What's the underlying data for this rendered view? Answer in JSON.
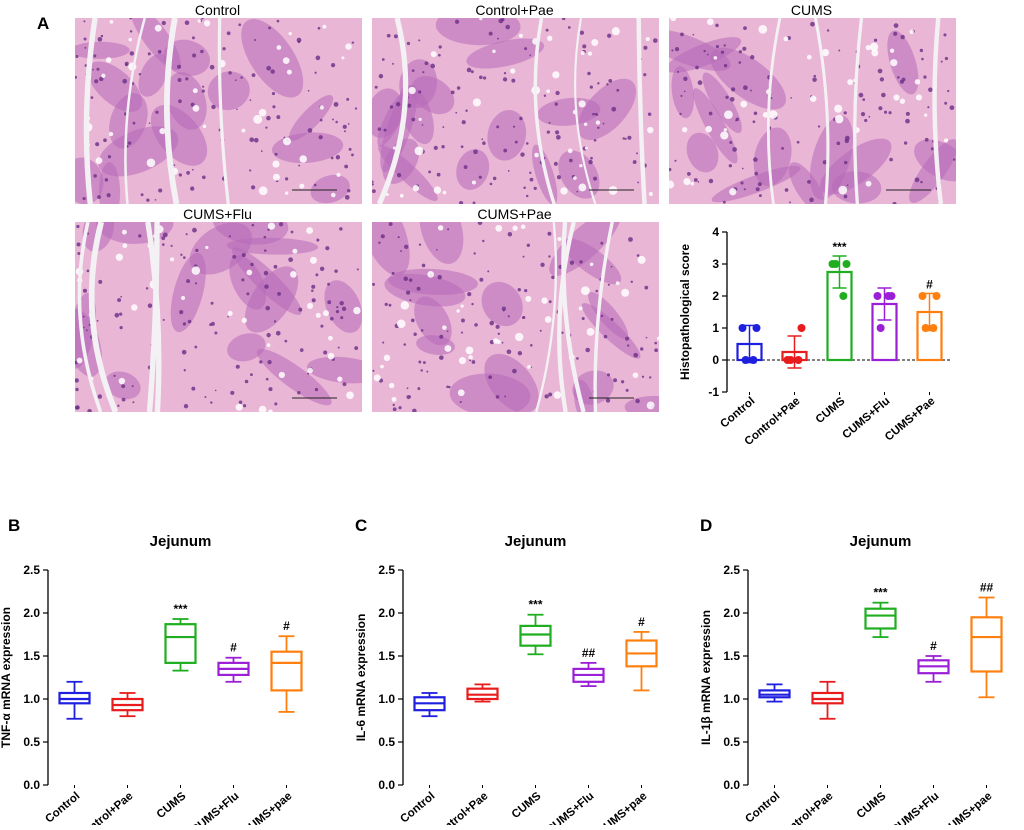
{
  "panel_letters": {
    "a": "A",
    "b": "B",
    "c": "C",
    "d": "D"
  },
  "micrographs": [
    {
      "title": "Control"
    },
    {
      "title": "Control+Pae"
    },
    {
      "title": "CUMS"
    },
    {
      "title": "CUMS+Flu"
    },
    {
      "title": "CUMS+Pae"
    }
  ],
  "colors": {
    "Control": "#1f1fe0",
    "Control+Pae": "#e81c1c",
    "CUMS": "#1fae1f",
    "CUMS+Flu": "#9b1fd6",
    "CUMS+Pae": "#ff7f0e",
    "tissue_bg": "#e9b6d6",
    "tissue_dark": "#6a2e86",
    "tissue_mid": "#b76ab8",
    "lumen": "#f4f1f4"
  },
  "chart_data": [
    {
      "id": "histo",
      "type": "bar",
      "title": "",
      "ylabel": "Histopathological score",
      "xlabel": "",
      "ylim": [
        -1,
        4
      ],
      "yticks": [
        "-1",
        "0",
        "1",
        "2",
        "3",
        "4"
      ],
      "categories": [
        "Control",
        "Control+Pae",
        "CUMS",
        "CUMS+Flu",
        "CUMS+Pae"
      ],
      "values": [
        0.5,
        0.25,
        2.75,
        1.75,
        1.5
      ],
      "sd": [
        0.58,
        0.5,
        0.5,
        0.5,
        0.58
      ],
      "points": [
        [
          1,
          1,
          0,
          0
        ],
        [
          0,
          1,
          0,
          0
        ],
        [
          3,
          3,
          3,
          2
        ],
        [
          2,
          2,
          1,
          2
        ],
        [
          2,
          2,
          1,
          1
        ]
      ],
      "annotations": [
        "",
        "",
        "***",
        "",
        "#"
      ],
      "zero_line": "dashed"
    },
    {
      "id": "tnf",
      "type": "box",
      "title": "Jejunum",
      "ylabel": "TNF-α mRNA expression",
      "xlabel": "",
      "ylim": [
        0,
        2.5
      ],
      "yticks": [
        "0.0",
        "0.5",
        "1.0",
        "1.5",
        "2.0",
        "2.5"
      ],
      "categories": [
        "Control",
        "Control+Pae",
        "CUMS",
        "CUMS+Flu",
        "CUMS+pae"
      ],
      "boxes": [
        {
          "min": 0.77,
          "q1": 0.95,
          "median": 1.0,
          "q3": 1.07,
          "max": 1.2
        },
        {
          "min": 0.8,
          "q1": 0.87,
          "median": 0.93,
          "q3": 1.0,
          "max": 1.07
        },
        {
          "min": 1.33,
          "q1": 1.42,
          "median": 1.72,
          "q3": 1.87,
          "max": 1.93
        },
        {
          "min": 1.2,
          "q1": 1.28,
          "median": 1.35,
          "q3": 1.42,
          "max": 1.48
        },
        {
          "min": 0.85,
          "q1": 1.1,
          "median": 1.42,
          "q3": 1.55,
          "max": 1.73
        }
      ],
      "annotations": [
        "",
        "",
        "***",
        "#",
        "#"
      ]
    },
    {
      "id": "il6",
      "type": "box",
      "title": "Jejunum",
      "ylabel": "IL-6 mRNA expression",
      "xlabel": "",
      "ylim": [
        0,
        2.5
      ],
      "yticks": [
        "0.0",
        "0.5",
        "1.0",
        "1.5",
        "2.0",
        "2.5"
      ],
      "categories": [
        "Control",
        "Control+Pae",
        "CUMS",
        "CUMS+Flu",
        "CUMS+pae"
      ],
      "boxes": [
        {
          "min": 0.8,
          "q1": 0.87,
          "median": 0.95,
          "q3": 1.02,
          "max": 1.07
        },
        {
          "min": 0.97,
          "q1": 1.0,
          "median": 1.05,
          "q3": 1.12,
          "max": 1.17
        },
        {
          "min": 1.52,
          "q1": 1.62,
          "median": 1.75,
          "q3": 1.85,
          "max": 1.98
        },
        {
          "min": 1.15,
          "q1": 1.2,
          "median": 1.28,
          "q3": 1.35,
          "max": 1.42
        },
        {
          "min": 1.1,
          "q1": 1.38,
          "median": 1.53,
          "q3": 1.68,
          "max": 1.78
        }
      ],
      "annotations": [
        "",
        "",
        "***",
        "##",
        "#"
      ]
    },
    {
      "id": "il1b",
      "type": "box",
      "title": "Jejunum",
      "ylabel": "IL-1β mRNA expression",
      "xlabel": "",
      "ylim": [
        0,
        2.5
      ],
      "yticks": [
        "0.0",
        "0.5",
        "1.0",
        "1.5",
        "2.0",
        "2.5"
      ],
      "categories": [
        "Control",
        "Control+Pae",
        "CUMS",
        "CUMS+Flu",
        "CUMS+pae"
      ],
      "boxes": [
        {
          "min": 0.97,
          "q1": 1.02,
          "median": 1.05,
          "q3": 1.1,
          "max": 1.17
        },
        {
          "min": 0.77,
          "q1": 0.95,
          "median": 1.0,
          "q3": 1.07,
          "max": 1.2
        },
        {
          "min": 1.72,
          "q1": 1.82,
          "median": 1.97,
          "q3": 2.05,
          "max": 2.12
        },
        {
          "min": 1.2,
          "q1": 1.3,
          "median": 1.38,
          "q3": 1.45,
          "max": 1.5
        },
        {
          "min": 1.02,
          "q1": 1.32,
          "median": 1.72,
          "q3": 1.95,
          "max": 2.18
        }
      ],
      "annotations": [
        "",
        "",
        "***",
        "#",
        "##"
      ]
    }
  ]
}
